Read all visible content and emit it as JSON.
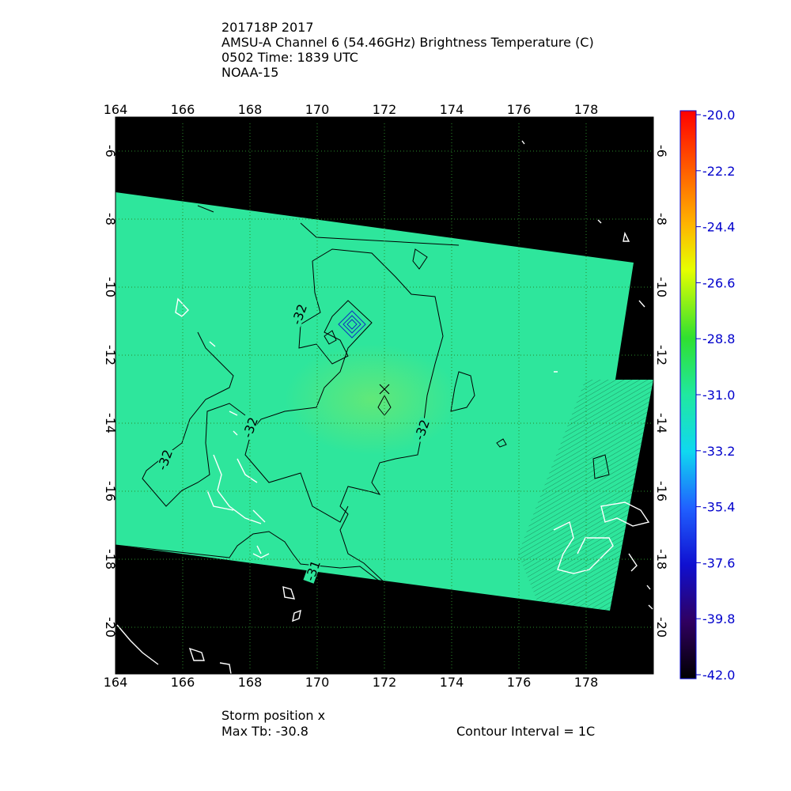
{
  "header": {
    "lines": [
      "201718P 2017",
      "AMSU-A Channel 6 (54.46GHz) Brightness Temperature (C)",
      "0502 Time: 1839 UTC",
      "NOAA-15"
    ]
  },
  "map": {
    "lon_labels": [
      "164",
      "166",
      "168",
      "170",
      "172",
      "174",
      "176",
      "178"
    ],
    "lat_labels": [
      "-6",
      "-8",
      "-10",
      "-12",
      "-14",
      "-16",
      "-18",
      "-20"
    ],
    "contour_labels": [
      "-32",
      "-32",
      "-32",
      "-32",
      "-31"
    ]
  },
  "colorbar": {
    "labels": [
      "-20.0",
      "-22.2",
      "-24.4",
      "-26.6",
      "-28.8",
      "-31.0",
      "-33.2",
      "-35.4",
      "-37.6",
      "-39.8",
      "-42.0"
    ]
  },
  "footer": {
    "storm": "Storm position x",
    "max_tb": "Max Tb: -30.8",
    "interval": "Contour Interval = 1C"
  }
}
